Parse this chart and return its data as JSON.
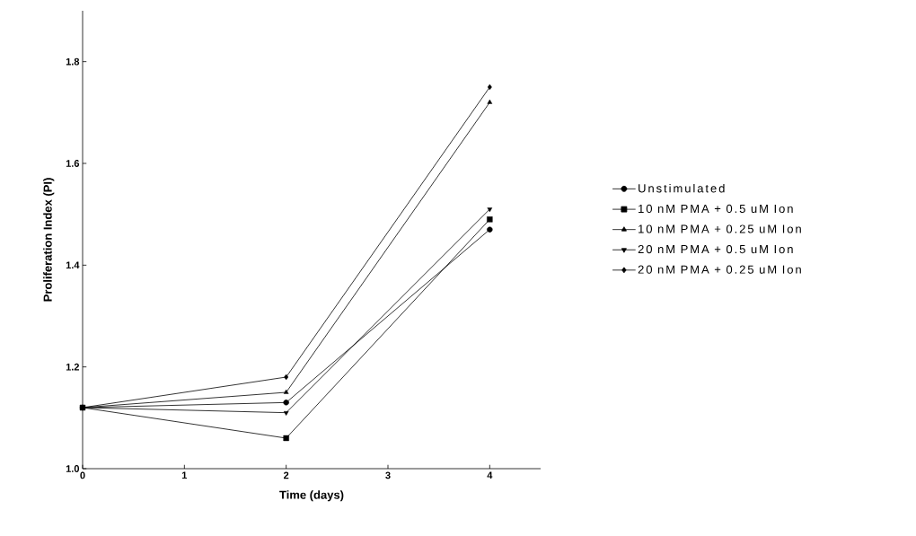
{
  "chart_data": {
    "type": "line",
    "xlabel": "Time (days)",
    "ylabel": "Proliferation Index (PI)",
    "x": [
      0,
      2,
      4
    ],
    "series": [
      {
        "name": "Unstimulated",
        "color": "#000000",
        "marker": "circle",
        "values": [
          1.12,
          1.13,
          1.47
        ]
      },
      {
        "name": "10 nM PMA + 0.5 uM Ion",
        "color": "#000000",
        "marker": "square",
        "values": [
          1.12,
          1.06,
          1.49
        ]
      },
      {
        "name": "10 nM PMA + 0.25 uM Ion",
        "color": "#000000",
        "marker": "triangle",
        "values": [
          1.12,
          1.15,
          1.72
        ]
      },
      {
        "name": "20 nM PMA + 0.5 uM Ion",
        "color": "#000000",
        "marker": "triangle-down",
        "values": [
          1.12,
          1.11,
          1.51
        ]
      },
      {
        "name": "20 nM PMA + 0.25 uM Ion",
        "color": "#000000",
        "marker": "diamond",
        "values": [
          1.12,
          1.18,
          1.75
        ]
      }
    ],
    "xlim": [
      0,
      4.5
    ],
    "xticks": [
      0,
      1,
      2,
      3,
      4
    ],
    "ylim": [
      1.0,
      1.9
    ],
    "yticks": [
      {
        "value": 1.0,
        "label": "1.0"
      },
      {
        "value": 1.2,
        "label": "1.2"
      },
      {
        "value": 1.4,
        "label": "1.4"
      },
      {
        "value": 1.6,
        "label": "1.6"
      },
      {
        "value": 1.8,
        "label": "1.8"
      }
    ],
    "grid": false,
    "legend": "right",
    "line_style": "solid"
  }
}
